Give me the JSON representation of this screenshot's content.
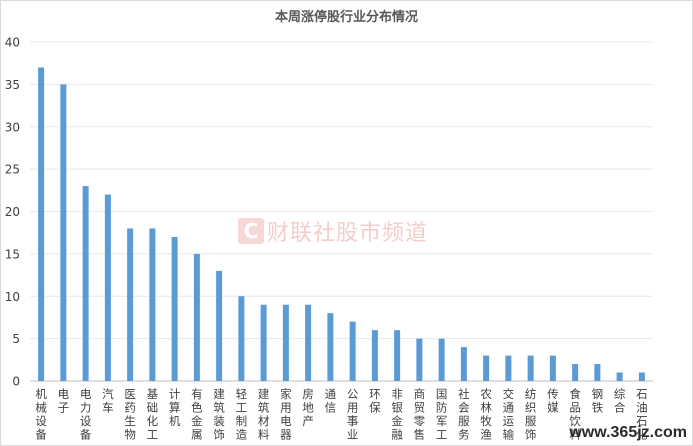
{
  "watermark": {
    "logo_char": "C",
    "text": "财联社股市频道"
  },
  "site_mark": {
    "text": "www.365jz.com"
  },
  "colors": {
    "bar": "#5b9bd5",
    "grid": "#e8e8e8",
    "tick_text": "#404040",
    "title": "#595959"
  },
  "chart_data": {
    "type": "bar",
    "title": "本周涨停股行业分布情况",
    "xlabel": "",
    "ylabel": "",
    "ylim": [
      0,
      40
    ],
    "yticks": [
      0,
      5,
      10,
      15,
      20,
      25,
      30,
      35,
      40
    ],
    "grid": true,
    "categories": [
      "机械设备",
      "电子",
      "电力设备",
      "汽车",
      "医药生物",
      "基础化工",
      "计算机",
      "有色金属",
      "建筑装饰",
      "轻工制造",
      "建筑材料",
      "家用电器",
      "房地产",
      "通信",
      "公用事业",
      "环保",
      "非银金融",
      "商贸零售",
      "国防军工",
      "社会服务",
      "农林牧渔",
      "交通运输",
      "纺织服饰",
      "传媒",
      "食品饮料",
      "钢铁",
      "综合",
      "石油石化"
    ],
    "values": [
      37,
      35,
      23,
      22,
      18,
      18,
      17,
      15,
      13,
      10,
      9,
      9,
      9,
      8,
      7,
      6,
      6,
      5,
      5,
      4,
      3,
      3,
      3,
      3,
      2,
      2,
      1,
      1
    ]
  }
}
